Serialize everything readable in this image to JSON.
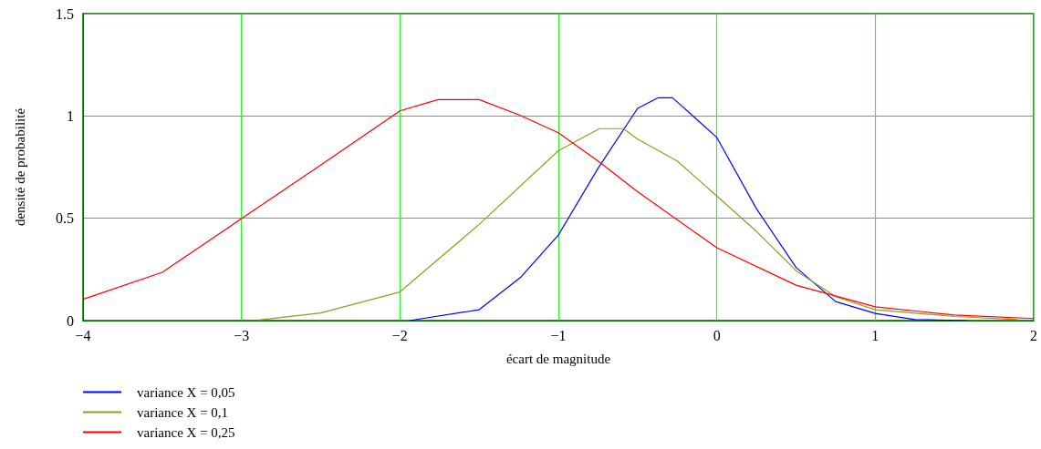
{
  "chart_data": {
    "type": "line",
    "xlabel": "écart de magnitude",
    "ylabel": "densité de probabilité",
    "xlim": [
      -4,
      2
    ],
    "xticks": [
      {
        "value": -4,
        "label": "−4"
      },
      {
        "value": -3,
        "label": "−3"
      },
      {
        "value": -2,
        "label": "−2"
      },
      {
        "value": -1,
        "label": "−1"
      },
      0,
      1,
      2
    ],
    "ylim": [
      0,
      1.5
    ],
    "yticks": [
      0,
      0.5,
      1,
      1.5
    ],
    "grid": true,
    "legend": "bottom left",
    "marker": "none",
    "line_style": "solid",
    "series": [
      {
        "name": "variance X = 0,05",
        "color": "#0000ff",
        "x": [
          -1.94,
          -1.5,
          -1.24,
          -1,
          -0.75,
          -0.5,
          -0.37,
          -0.28,
          -0.25,
          0,
          0.25,
          0.5,
          0.75,
          1,
          1.25,
          1.58
        ],
        "values": [
          0,
          0.053,
          0.21,
          0.418,
          0.744,
          1.037,
          1.089,
          1.089,
          1.069,
          0.895,
          0.547,
          0.26,
          0.093,
          0.035,
          0.005,
          0
        ]
      },
      {
        "name": "variance X = 0,1",
        "color": "#8c9e1e",
        "x": [
          -2.89,
          -2.5,
          -2,
          -1.5,
          -1,
          -0.74,
          -0.59,
          -0.5,
          -0.25,
          0,
          0.25,
          0.5,
          0.75,
          1,
          1.5,
          1.9
        ],
        "values": [
          0.003,
          0.037,
          0.14,
          0.47,
          0.83,
          0.938,
          0.938,
          0.887,
          0.78,
          0.609,
          0.436,
          0.244,
          0.117,
          0.053,
          0.02,
          0.005
        ]
      },
      {
        "name": "variance X = 0,25",
        "color": "#ff0000",
        "x": [
          -4,
          -3.5,
          -3,
          -2.5,
          -2,
          -1.76,
          -1.5,
          -1.25,
          -1,
          -0.75,
          -0.5,
          0,
          0.5,
          1,
          1.5,
          2
        ],
        "values": [
          0.104,
          0.236,
          0.498,
          0.76,
          1.025,
          1.08,
          1.08,
          1.006,
          0.918,
          0.78,
          0.63,
          0.356,
          0.173,
          0.067,
          0.027,
          0.01
        ]
      }
    ]
  }
}
